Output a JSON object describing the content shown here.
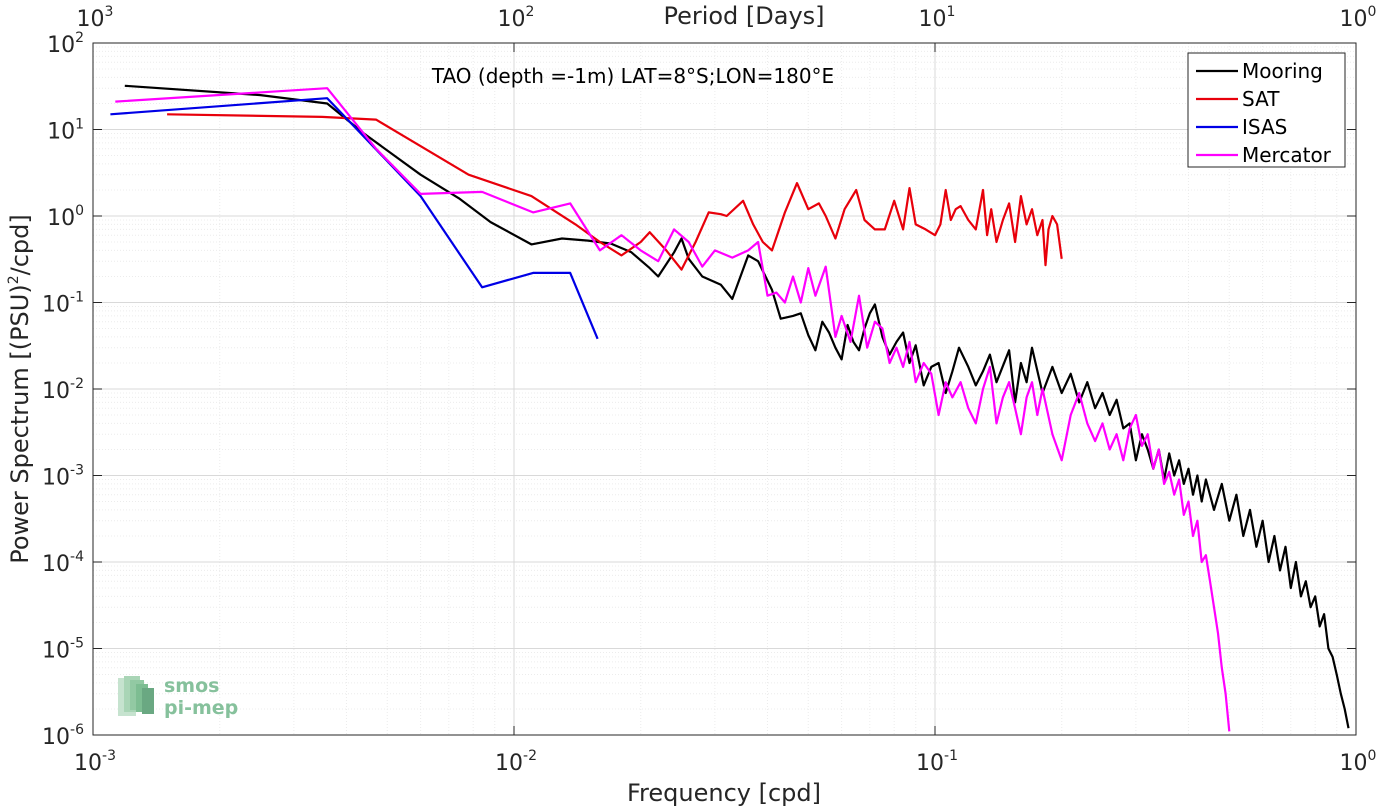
{
  "chart_data": {
    "type": "line",
    "annotation": "TAO (depth =-1m) LAT=8°S;LON=180°E",
    "xlabel": "Frequency [cpd]",
    "ylabel": "Power Spectrum [(PSU)",
    "ylabel_sup": "2",
    "ylabel_tail": "/cpd]",
    "top_xlabel": "Period [Days]",
    "x_scale": "log",
    "y_scale": "log",
    "xlim": [
      0.001,
      1
    ],
    "ylim": [
      1e-06,
      100
    ],
    "grid": true,
    "legend_position": "top-right",
    "x_ticks": [
      {
        "base": "10",
        "exp": "-3"
      },
      {
        "base": "10",
        "exp": "-2"
      },
      {
        "base": "10",
        "exp": "-1"
      },
      {
        "base": "10",
        "exp": "0"
      }
    ],
    "top_ticks": [
      {
        "base": "10",
        "exp": "3"
      },
      {
        "base": "10",
        "exp": "2"
      },
      {
        "base": "10",
        "exp": "1"
      },
      {
        "base": "10",
        "exp": "0"
      }
    ],
    "y_ticks": [
      {
        "base": "10",
        "exp": "-6"
      },
      {
        "base": "10",
        "exp": "-5"
      },
      {
        "base": "10",
        "exp": "-4"
      },
      {
        "base": "10",
        "exp": "-3"
      },
      {
        "base": "10",
        "exp": "-2"
      },
      {
        "base": "10",
        "exp": "-1"
      },
      {
        "base": "10",
        "exp": "0"
      },
      {
        "base": "10",
        "exp": "1"
      },
      {
        "base": "10",
        "exp": "2"
      }
    ],
    "series": [
      {
        "name": "Mooring",
        "color": "#000000",
        "points": [
          [
            0.00119,
            32
          ],
          [
            0.0025,
            25
          ],
          [
            0.0036,
            20
          ],
          [
            0.0044,
            9
          ],
          [
            0.006,
            3
          ],
          [
            0.0074,
            1.6
          ],
          [
            0.0088,
            0.85
          ],
          [
            0.011,
            0.47
          ],
          [
            0.013,
            0.55
          ],
          [
            0.015,
            0.52
          ],
          [
            0.017,
            0.48
          ],
          [
            0.019,
            0.38
          ],
          [
            0.021,
            0.25
          ],
          [
            0.022,
            0.2
          ],
          [
            0.024,
            0.38
          ],
          [
            0.025,
            0.55
          ],
          [
            0.026,
            0.32
          ],
          [
            0.028,
            0.2
          ],
          [
            0.031,
            0.16
          ],
          [
            0.033,
            0.11
          ],
          [
            0.036,
            0.35
          ],
          [
            0.038,
            0.3
          ],
          [
            0.041,
            0.14
          ],
          [
            0.043,
            0.065
          ],
          [
            0.046,
            0.07
          ],
          [
            0.048,
            0.075
          ],
          [
            0.05,
            0.042
          ],
          [
            0.052,
            0.028
          ],
          [
            0.054,
            0.06
          ],
          [
            0.056,
            0.045
          ],
          [
            0.058,
            0.03
          ],
          [
            0.06,
            0.022
          ],
          [
            0.062,
            0.055
          ],
          [
            0.064,
            0.035
          ],
          [
            0.066,
            0.028
          ],
          [
            0.068,
            0.05
          ],
          [
            0.07,
            0.075
          ],
          [
            0.072,
            0.095
          ],
          [
            0.075,
            0.04
          ],
          [
            0.078,
            0.025
          ],
          [
            0.081,
            0.035
          ],
          [
            0.084,
            0.045
          ],
          [
            0.087,
            0.02
          ],
          [
            0.09,
            0.032
          ],
          [
            0.094,
            0.011
          ],
          [
            0.098,
            0.018
          ],
          [
            0.102,
            0.02
          ],
          [
            0.106,
            0.009
          ],
          [
            0.11,
            0.016
          ],
          [
            0.114,
            0.03
          ],
          [
            0.12,
            0.018
          ],
          [
            0.125,
            0.011
          ],
          [
            0.13,
            0.016
          ],
          [
            0.135,
            0.025
          ],
          [
            0.14,
            0.012
          ],
          [
            0.15,
            0.028
          ],
          [
            0.155,
            0.007
          ],
          [
            0.16,
            0.02
          ],
          [
            0.165,
            0.012
          ],
          [
            0.17,
            0.03
          ],
          [
            0.18,
            0.009
          ],
          [
            0.19,
            0.018
          ],
          [
            0.2,
            0.009
          ],
          [
            0.21,
            0.015
          ],
          [
            0.22,
            0.007
          ],
          [
            0.23,
            0.012
          ],
          [
            0.24,
            0.006
          ],
          [
            0.25,
            0.009
          ],
          [
            0.26,
            0.005
          ],
          [
            0.27,
            0.0075
          ],
          [
            0.28,
            0.0035
          ],
          [
            0.29,
            0.004
          ],
          [
            0.3,
            0.0015
          ],
          [
            0.31,
            0.003
          ],
          [
            0.32,
            0.002
          ],
          [
            0.33,
            0.0012
          ],
          [
            0.34,
            0.002
          ],
          [
            0.35,
            0.0009
          ],
          [
            0.36,
            0.0018
          ],
          [
            0.37,
            0.001
          ],
          [
            0.38,
            0.0015
          ],
          [
            0.39,
            0.0008
          ],
          [
            0.4,
            0.0012
          ],
          [
            0.41,
            0.0006
          ],
          [
            0.42,
            0.001
          ],
          [
            0.43,
            0.0005
          ],
          [
            0.44,
            0.0009
          ],
          [
            0.46,
            0.0004
          ],
          [
            0.48,
            0.0008
          ],
          [
            0.5,
            0.0003
          ],
          [
            0.52,
            0.0006
          ],
          [
            0.54,
            0.0002
          ],
          [
            0.56,
            0.0004
          ],
          [
            0.58,
            0.00015
          ],
          [
            0.6,
            0.0003
          ],
          [
            0.62,
            0.0001
          ],
          [
            0.64,
            0.0002
          ],
          [
            0.66,
            8e-05
          ],
          [
            0.68,
            0.00015
          ],
          [
            0.7,
            5e-05
          ],
          [
            0.72,
            0.0001
          ],
          [
            0.74,
            4e-05
          ],
          [
            0.76,
            6e-05
          ],
          [
            0.78,
            3e-05
          ],
          [
            0.8,
            4e-05
          ],
          [
            0.82,
            1.8e-05
          ],
          [
            0.84,
            2.5e-05
          ],
          [
            0.86,
            1e-05
          ],
          [
            0.88,
            8e-06
          ],
          [
            0.9,
            5e-06
          ],
          [
            0.92,
            3e-06
          ],
          [
            0.94,
            2e-06
          ],
          [
            0.96,
            1.2e-06
          ]
        ]
      },
      {
        "name": "SAT",
        "color": "#e8000b",
        "points": [
          [
            0.0015,
            15
          ],
          [
            0.0035,
            14
          ],
          [
            0.0047,
            13
          ],
          [
            0.0078,
            3
          ],
          [
            0.011,
            1.7
          ],
          [
            0.014,
            0.8
          ],
          [
            0.016,
            0.5
          ],
          [
            0.018,
            0.35
          ],
          [
            0.02,
            0.5
          ],
          [
            0.021,
            0.65
          ],
          [
            0.023,
            0.4
          ],
          [
            0.025,
            0.24
          ],
          [
            0.027,
            0.5
          ],
          [
            0.029,
            1.1
          ],
          [
            0.031,
            1.05
          ],
          [
            0.032,
            1.0
          ],
          [
            0.035,
            1.5
          ],
          [
            0.037,
            0.8
          ],
          [
            0.039,
            0.5
          ],
          [
            0.041,
            0.4
          ],
          [
            0.044,
            1.1
          ],
          [
            0.047,
            2.4
          ],
          [
            0.05,
            1.2
          ],
          [
            0.053,
            1.4
          ],
          [
            0.055,
            1.0
          ],
          [
            0.058,
            0.55
          ],
          [
            0.061,
            1.2
          ],
          [
            0.065,
            2.0
          ],
          [
            0.068,
            0.9
          ],
          [
            0.072,
            0.7
          ],
          [
            0.076,
            0.7
          ],
          [
            0.08,
            1.5
          ],
          [
            0.084,
            0.7
          ],
          [
            0.087,
            2.1
          ],
          [
            0.09,
            0.8
          ],
          [
            0.095,
            0.7
          ],
          [
            0.1,
            0.6
          ],
          [
            0.103,
            0.8
          ],
          [
            0.106,
            2.0
          ],
          [
            0.109,
            0.9
          ],
          [
            0.112,
            1.2
          ],
          [
            0.115,
            1.3
          ],
          [
            0.12,
            0.9
          ],
          [
            0.125,
            0.7
          ],
          [
            0.13,
            2.0
          ],
          [
            0.133,
            0.6
          ],
          [
            0.136,
            1.2
          ],
          [
            0.14,
            0.5
          ],
          [
            0.145,
            0.9
          ],
          [
            0.15,
            1.4
          ],
          [
            0.155,
            0.5
          ],
          [
            0.16,
            1.7
          ],
          [
            0.165,
            0.8
          ],
          [
            0.17,
            1.2
          ],
          [
            0.175,
            0.6
          ],
          [
            0.18,
            0.9
          ],
          [
            0.183,
            0.27
          ],
          [
            0.186,
            0.7
          ],
          [
            0.19,
            1.0
          ],
          [
            0.195,
            0.8
          ],
          [
            0.2,
            0.32
          ]
        ]
      },
      {
        "name": "ISAS",
        "color": "#0000e6",
        "points": [
          [
            0.0011,
            15
          ],
          [
            0.0036,
            23
          ],
          [
            0.006,
            1.7
          ],
          [
            0.0084,
            0.15
          ],
          [
            0.0111,
            0.22
          ],
          [
            0.0136,
            0.22
          ],
          [
            0.0158,
            0.038
          ]
        ]
      },
      {
        "name": "Mercator",
        "color": "#ff00ff",
        "points": [
          [
            0.00113,
            21
          ],
          [
            0.0036,
            30
          ],
          [
            0.0047,
            6
          ],
          [
            0.006,
            1.8
          ],
          [
            0.0084,
            1.9
          ],
          [
            0.0111,
            1.1
          ],
          [
            0.0136,
            1.4
          ],
          [
            0.016,
            0.4
          ],
          [
            0.018,
            0.6
          ],
          [
            0.02,
            0.4
          ],
          [
            0.022,
            0.3
          ],
          [
            0.024,
            0.7
          ],
          [
            0.026,
            0.5
          ],
          [
            0.028,
            0.26
          ],
          [
            0.03,
            0.4
          ],
          [
            0.033,
            0.33
          ],
          [
            0.036,
            0.4
          ],
          [
            0.038,
            0.5
          ],
          [
            0.04,
            0.12
          ],
          [
            0.042,
            0.13
          ],
          [
            0.044,
            0.1
          ],
          [
            0.046,
            0.2
          ],
          [
            0.048,
            0.1
          ],
          [
            0.05,
            0.25
          ],
          [
            0.052,
            0.12
          ],
          [
            0.055,
            0.26
          ],
          [
            0.058,
            0.04
          ],
          [
            0.06,
            0.07
          ],
          [
            0.063,
            0.035
          ],
          [
            0.066,
            0.12
          ],
          [
            0.069,
            0.03
          ],
          [
            0.072,
            0.06
          ],
          [
            0.075,
            0.05
          ],
          [
            0.078,
            0.02
          ],
          [
            0.081,
            0.03
          ],
          [
            0.084,
            0.018
          ],
          [
            0.087,
            0.035
          ],
          [
            0.09,
            0.012
          ],
          [
            0.094,
            0.02
          ],
          [
            0.098,
            0.015
          ],
          [
            0.102,
            0.005
          ],
          [
            0.106,
            0.012
          ],
          [
            0.11,
            0.008
          ],
          [
            0.115,
            0.012
          ],
          [
            0.12,
            0.006
          ],
          [
            0.125,
            0.004
          ],
          [
            0.13,
            0.01
          ],
          [
            0.135,
            0.018
          ],
          [
            0.14,
            0.004
          ],
          [
            0.145,
            0.008
          ],
          [
            0.15,
            0.012
          ],
          [
            0.155,
            0.006
          ],
          [
            0.16,
            0.003
          ],
          [
            0.165,
            0.008
          ],
          [
            0.17,
            0.012
          ],
          [
            0.175,
            0.005
          ],
          [
            0.18,
            0.01
          ],
          [
            0.19,
            0.003
          ],
          [
            0.2,
            0.0015
          ],
          [
            0.21,
            0.005
          ],
          [
            0.22,
            0.009
          ],
          [
            0.23,
            0.004
          ],
          [
            0.24,
            0.0025
          ],
          [
            0.25,
            0.004
          ],
          [
            0.26,
            0.002
          ],
          [
            0.27,
            0.003
          ],
          [
            0.28,
            0.0015
          ],
          [
            0.29,
            0.0035
          ],
          [
            0.3,
            0.005
          ],
          [
            0.31,
            0.0022
          ],
          [
            0.32,
            0.003
          ],
          [
            0.33,
            0.0012
          ],
          [
            0.34,
            0.002
          ],
          [
            0.35,
            0.0008
          ],
          [
            0.36,
            0.0011
          ],
          [
            0.37,
            0.0006
          ],
          [
            0.38,
            0.0009
          ],
          [
            0.39,
            0.00035
          ],
          [
            0.4,
            0.0005
          ],
          [
            0.41,
            0.0002
          ],
          [
            0.42,
            0.0003
          ],
          [
            0.43,
            0.0001
          ],
          [
            0.44,
            0.00012
          ],
          [
            0.45,
            6e-05
          ],
          [
            0.46,
            3e-05
          ],
          [
            0.47,
            1.5e-05
          ],
          [
            0.48,
            6e-06
          ],
          [
            0.49,
            3e-06
          ],
          [
            0.5,
            1.1e-06
          ]
        ]
      }
    ]
  },
  "logo": {
    "line1": "smos",
    "line2": "pi-mep"
  }
}
